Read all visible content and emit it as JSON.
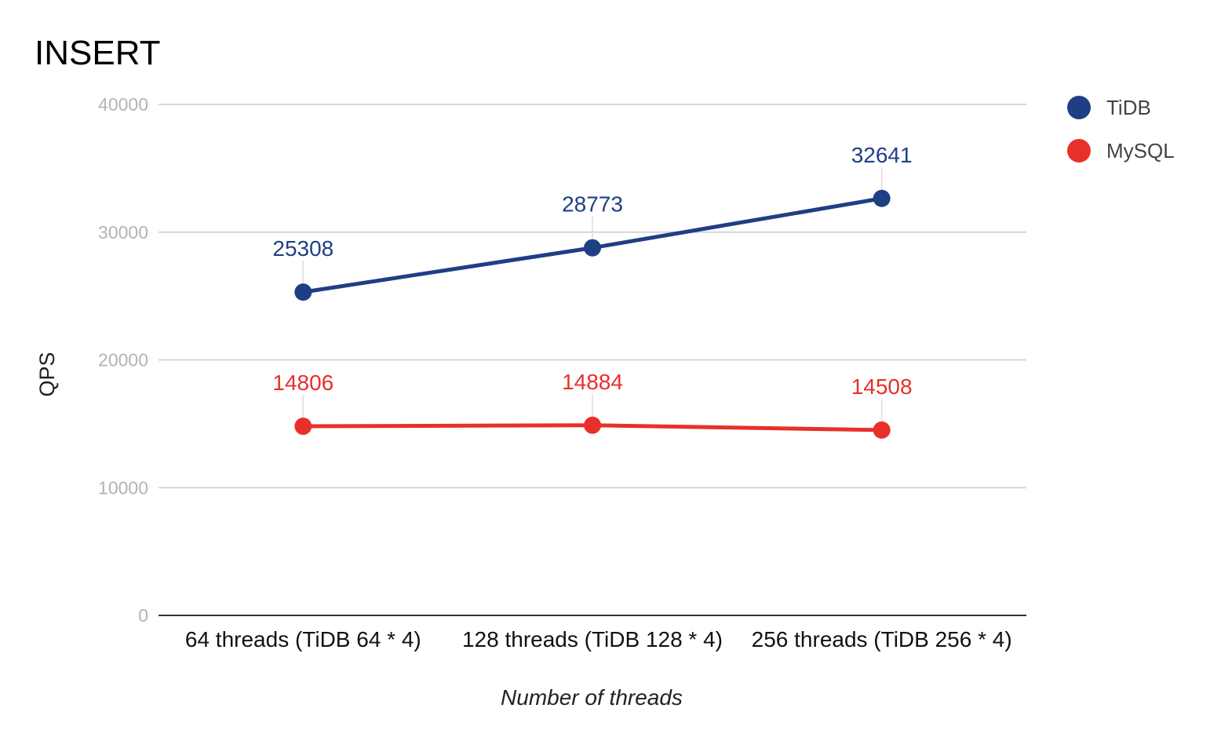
{
  "chart_data": {
    "type": "line",
    "title": "INSERT",
    "xlabel": "Number of threads",
    "ylabel": "QPS",
    "categories": [
      "64 threads (TiDB 64 * 4)",
      "128 threads (TiDB 128 * 4)",
      "256 threads (TiDB 256 * 4)"
    ],
    "series": [
      {
        "name": "TiDB",
        "color": "#1f3f85",
        "values": [
          25308,
          28773,
          32641
        ],
        "labels": [
          "25308",
          "28773",
          "32641"
        ]
      },
      {
        "name": "MySQL",
        "color": "#e8302a",
        "values": [
          14806,
          14884,
          14508
        ],
        "labels": [
          "14806",
          "14884",
          "14508"
        ]
      }
    ],
    "ylim": [
      0,
      40000
    ],
    "yticks": [
      0,
      10000,
      20000,
      30000,
      40000
    ],
    "ytick_labels": [
      "0",
      "10000",
      "20000",
      "30000",
      "40000"
    ],
    "grid": true,
    "legend": "top-right"
  }
}
